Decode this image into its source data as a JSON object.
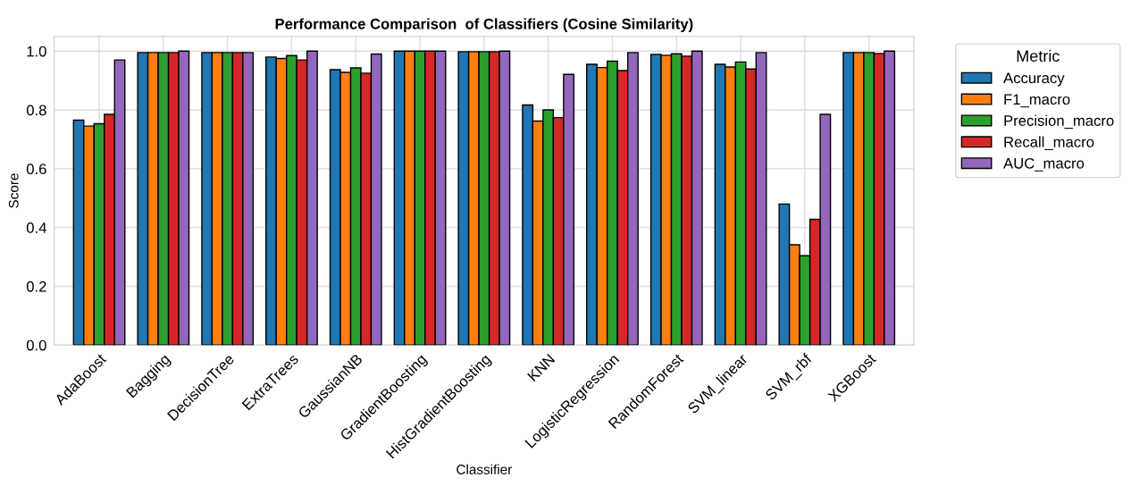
{
  "chart_data": {
    "type": "bar",
    "title": "Performance Comparison  of Classifiers (Cosine Similarity)",
    "xlabel": "Classifier",
    "ylabel": "Score",
    "legend_title": "Metric",
    "categories": [
      "AdaBoost",
      "Bagging",
      "DecisionTree",
      "ExtraTrees",
      "GaussianNB",
      "GradientBoosting",
      "HistGradientBoosting",
      "KNN",
      "LogisticRegression",
      "RandomForest",
      "SVM_linear",
      "SVM_rbf",
      "XGBoost"
    ],
    "series": [
      {
        "name": "Accuracy",
        "color": "#1f77b4",
        "values": [
          0.765,
          0.995,
          0.995,
          0.98,
          0.937,
          1.0,
          0.998,
          0.817,
          0.955,
          0.989,
          0.955,
          0.48,
          0.995
        ]
      },
      {
        "name": "F1_macro",
        "color": "#ff7f0e",
        "values": [
          0.745,
          0.995,
          0.995,
          0.975,
          0.928,
          1.0,
          0.998,
          0.762,
          0.944,
          0.986,
          0.946,
          0.341,
          0.995
        ]
      },
      {
        "name": "Precision_macro",
        "color": "#2ca02c",
        "values": [
          0.753,
          0.995,
          0.995,
          0.985,
          0.943,
          1.0,
          0.998,
          0.8,
          0.966,
          0.991,
          0.963,
          0.304,
          0.995
        ]
      },
      {
        "name": "Recall_macro",
        "color": "#d62728",
        "values": [
          0.785,
          0.995,
          0.995,
          0.97,
          0.925,
          1.0,
          0.998,
          0.774,
          0.934,
          0.983,
          0.939,
          0.428,
          0.992
        ]
      },
      {
        "name": "AUC_macro",
        "color": "#9467bd",
        "values": [
          0.97,
          1.0,
          0.995,
          1.0,
          0.99,
          1.0,
          1.0,
          0.921,
          0.995,
          1.0,
          0.995,
          0.785,
          1.0
        ]
      }
    ],
    "ylim": [
      0,
      1.05
    ],
    "yticks": [
      {
        "value": 0,
        "label": "0.0"
      },
      {
        "value": 0.2,
        "label": "0.2"
      },
      {
        "value": 0.4,
        "label": "0.4"
      },
      {
        "value": 0.6,
        "label": "0.6"
      },
      {
        "value": 0.8,
        "label": "0.8"
      },
      {
        "value": 1.0,
        "label": "1.0"
      }
    ],
    "grid": true,
    "legend": "top right"
  }
}
